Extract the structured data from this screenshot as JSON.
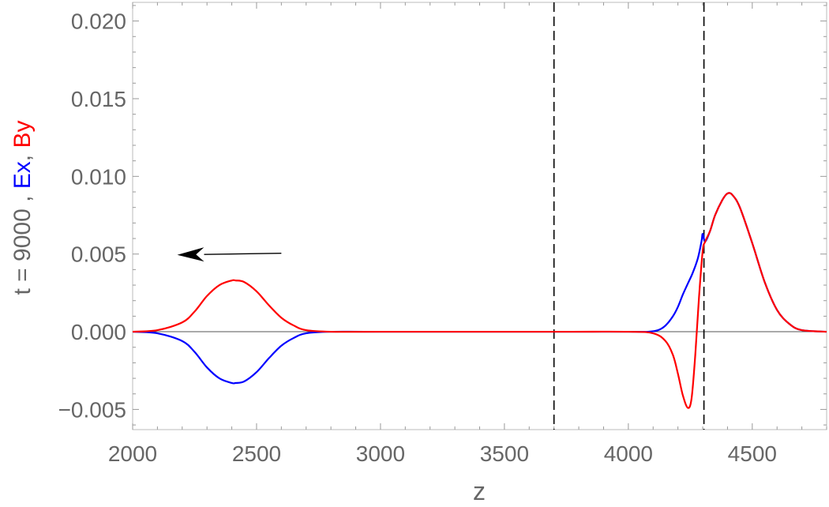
{
  "chart_data": {
    "type": "line",
    "title": "",
    "xlabel": "z",
    "ylabel_parts": [
      {
        "text": "t = 9000 , ",
        "color": "#666666"
      },
      {
        "text": "Ex",
        "color": "#0000ff"
      },
      {
        "text": ", ",
        "color": "#666666"
      },
      {
        "text": "By",
        "color": "#ff0000"
      }
    ],
    "xlim": [
      2000,
      4800
    ],
    "ylim": [
      -0.0063,
      0.0212
    ],
    "xticks": [
      2000,
      2500,
      3000,
      3500,
      4000,
      4500
    ],
    "xtick_labels": [
      "2000",
      "2500",
      "3000",
      "3500",
      "4000",
      "4500"
    ],
    "yticks": [
      -0.005,
      0.0,
      0.005,
      0.01,
      0.015,
      0.02
    ],
    "ytick_labels": [
      "−0.005",
      "0.000",
      "0.005",
      "0.010",
      "0.015",
      "0.020"
    ],
    "grid": false,
    "vertical_lines": [
      3700,
      4305
    ],
    "arrow": {
      "from": [
        2600,
        0.00505
      ],
      "to": [
        2180,
        0.00495
      ]
    },
    "colors": {
      "Ex": "#0000ff",
      "By": "#ff0000",
      "axis": "#666666"
    },
    "series": [
      {
        "name": "Ex",
        "color": "#0000ff",
        "x": [
          2000,
          2100,
          2200,
          2250,
          2300,
          2350,
          2400,
          2415,
          2450,
          2500,
          2550,
          2600,
          2650,
          2700,
          2800,
          3000,
          3700,
          4000,
          4080,
          4120,
          4150,
          4180,
          4200,
          4220,
          4240,
          4260,
          4280,
          4295,
          4300,
          4310,
          4330,
          4350,
          4380,
          4400,
          4420,
          4450,
          4500,
          4550,
          4600,
          4650,
          4700,
          4800
        ],
        "y": [
          0.0,
          -0.0001,
          -0.0006,
          -0.0013,
          -0.0023,
          -0.003,
          -0.0033,
          -0.0033,
          -0.0032,
          -0.0026,
          -0.0017,
          -0.0009,
          -0.0004,
          -0.0001,
          0.0,
          0.0,
          0.0,
          0.0,
          0.0,
          0.0001,
          0.0004,
          0.001,
          0.0016,
          0.0024,
          0.0031,
          0.0038,
          0.0047,
          0.0058,
          0.0063,
          0.0058,
          0.0065,
          0.0075,
          0.0085,
          0.0089,
          0.0088,
          0.008,
          0.0057,
          0.0032,
          0.0014,
          0.0005,
          0.0001,
          0.0
        ]
      },
      {
        "name": "By",
        "color": "#ff0000",
        "x": [
          2000,
          2100,
          2200,
          2250,
          2300,
          2350,
          2400,
          2415,
          2450,
          2500,
          2550,
          2600,
          2650,
          2700,
          2800,
          3000,
          3700,
          4000,
          4100,
          4150,
          4180,
          4200,
          4220,
          4240,
          4255,
          4270,
          4285,
          4300,
          4310,
          4330,
          4350,
          4380,
          4400,
          4420,
          4450,
          4500,
          4550,
          4600,
          4650,
          4700,
          4800
        ],
        "y": [
          0.0,
          0.0001,
          0.0006,
          0.0013,
          0.0023,
          0.003,
          0.0033,
          0.0033,
          0.0032,
          0.0026,
          0.0017,
          0.0009,
          0.0004,
          0.0001,
          0.0,
          0.0,
          0.0,
          0.0,
          -0.0001,
          -0.0006,
          -0.0015,
          -0.0027,
          -0.0041,
          -0.0049,
          -0.0043,
          -0.0015,
          0.0022,
          0.0052,
          0.0058,
          0.0065,
          0.0075,
          0.0085,
          0.0089,
          0.0088,
          0.008,
          0.0057,
          0.0032,
          0.0014,
          0.0005,
          0.0001,
          0.0
        ]
      }
    ]
  }
}
